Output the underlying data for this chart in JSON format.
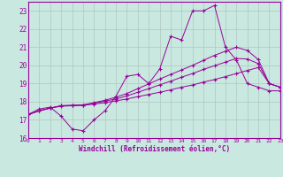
{
  "xlabel": "Windchill (Refroidissement éolien,°C)",
  "background_color": "#c8e8e0",
  "line_color": "#990099",
  "grid_color": "#b0c8c0",
  "xlim": [
    0,
    23
  ],
  "ylim": [
    16,
    23.5
  ],
  "xticks": [
    0,
    1,
    2,
    3,
    4,
    5,
    6,
    7,
    8,
    9,
    10,
    11,
    12,
    13,
    14,
    15,
    16,
    17,
    18,
    19,
    20,
    21,
    22,
    23
  ],
  "yticks": [
    16,
    17,
    18,
    19,
    20,
    21,
    22,
    23
  ],
  "series": [
    [
      17.3,
      17.6,
      17.7,
      17.2,
      16.5,
      16.4,
      17.0,
      17.5,
      18.3,
      19.4,
      19.5,
      19.0,
      19.8,
      21.6,
      21.4,
      23.0,
      23.0,
      23.3,
      21.0,
      20.3,
      19.0,
      18.8,
      18.6,
      18.6
    ],
    [
      17.3,
      17.5,
      17.65,
      17.75,
      17.78,
      17.8,
      17.87,
      17.95,
      18.05,
      18.15,
      18.28,
      18.4,
      18.52,
      18.65,
      18.8,
      18.92,
      19.08,
      19.22,
      19.38,
      19.55,
      19.72,
      19.88,
      19.0,
      18.8
    ],
    [
      17.3,
      17.5,
      17.65,
      17.78,
      17.8,
      17.82,
      17.92,
      18.03,
      18.15,
      18.32,
      18.52,
      18.72,
      18.93,
      19.13,
      19.35,
      19.55,
      19.78,
      19.98,
      20.18,
      20.38,
      20.35,
      20.1,
      19.0,
      18.8
    ],
    [
      17.3,
      17.5,
      17.65,
      17.78,
      17.8,
      17.82,
      17.95,
      18.08,
      18.25,
      18.45,
      18.72,
      18.98,
      19.25,
      19.5,
      19.75,
      20.0,
      20.28,
      20.55,
      20.78,
      21.0,
      20.82,
      20.32,
      19.0,
      18.8
    ]
  ]
}
